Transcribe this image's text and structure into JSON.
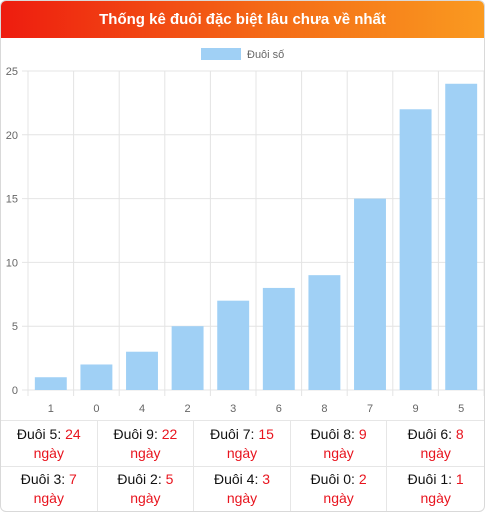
{
  "header": {
    "title": "Thống kê đuôi đặc biệt lâu chưa về nhất"
  },
  "chart_data": {
    "type": "bar",
    "categories": [
      "1",
      "0",
      "4",
      "2",
      "3",
      "6",
      "8",
      "7",
      "9",
      "5"
    ],
    "series": [
      {
        "name": "Đuôi số",
        "values": [
          1,
          2,
          3,
          5,
          7,
          8,
          9,
          15,
          22,
          24
        ],
        "color": "#a0d0f5"
      }
    ],
    "ylim": [
      0,
      25
    ],
    "yticks": [
      "0",
      "5",
      "10",
      "15",
      "20",
      "25"
    ],
    "grid": true,
    "legend": "top-center"
  },
  "stats": [
    {
      "label": "Đuôi 5:",
      "value": "24",
      "unit": "ngày"
    },
    {
      "label": "Đuôi 9:",
      "value": "22",
      "unit": "ngày"
    },
    {
      "label": "Đuôi 7:",
      "value": "15",
      "unit": "ngày"
    },
    {
      "label": "Đuôi 8:",
      "value": "9",
      "unit": "ngày"
    },
    {
      "label": "Đuôi 6:",
      "value": "8",
      "unit": "ngày"
    },
    {
      "label": "Đuôi 3:",
      "value": "7",
      "unit": "ngày"
    },
    {
      "label": "Đuôi 2:",
      "value": "5",
      "unit": "ngày"
    },
    {
      "label": "Đuôi 4:",
      "value": "3",
      "unit": "ngày"
    },
    {
      "label": "Đuôi 0:",
      "value": "2",
      "unit": "ngày"
    },
    {
      "label": "Đuôi 1:",
      "value": "1",
      "unit": "ngày"
    }
  ]
}
